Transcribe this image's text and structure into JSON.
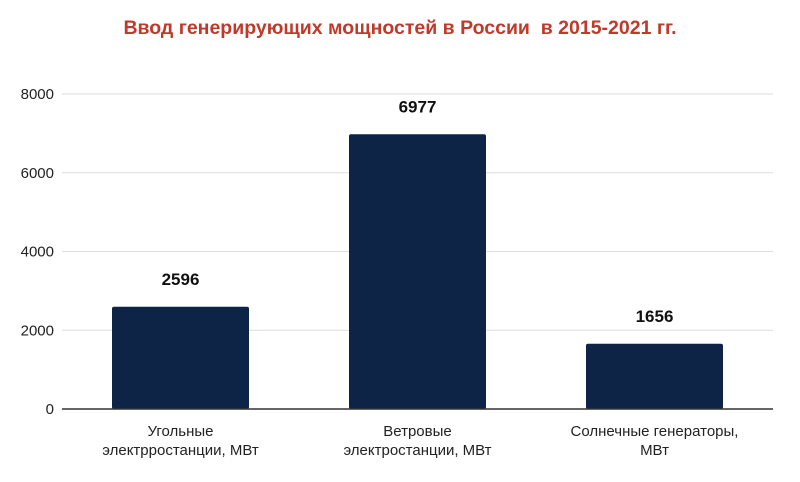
{
  "chart_data": {
    "type": "bar",
    "title": "Ввод генерирующих мощностей в России  в 2015-2021 гг.",
    "categories": [
      [
        "Угольные",
        "электрростанции, МВт"
      ],
      [
        "Ветровые",
        "электростанции, МВт"
      ],
      [
        "Солнечные генераторы,",
        "МВт"
      ]
    ],
    "values": [
      2596,
      6977,
      1656
    ],
    "data_labels": [
      "2596",
      "6977",
      "1656"
    ],
    "yticks": [
      "0",
      "2000",
      "4000",
      "6000",
      "8000"
    ],
    "ylim": [
      0,
      8000
    ],
    "xlabel": "",
    "ylabel": "",
    "grid": true,
    "legend": "none",
    "colors": {
      "bar": "#0d2447",
      "title": "#c0392b",
      "grid": "#dddddd",
      "axis": "#333333"
    }
  }
}
